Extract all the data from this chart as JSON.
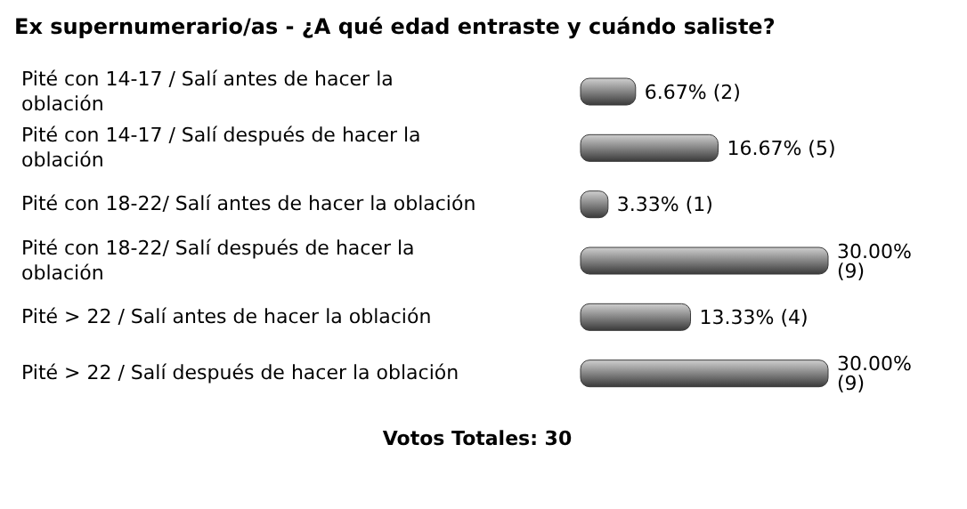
{
  "chart_data": {
    "type": "bar",
    "orientation": "horizontal",
    "title": "Ex supernumerario/as - ¿A qué edad entraste y cuándo saliste?",
    "categories": [
      "Pité con 14-17 / Salí antes de hacer la oblación",
      "Pité con 14-17 / Salí después de hacer la oblación",
      "Pité con 18-22/ Salí antes de hacer la oblación",
      "Pité con 18-22/ Salí después de hacer la oblación",
      "Pité > 22 / Salí antes de hacer la oblación",
      "Pité > 22 / Salí después de hacer la oblación"
    ],
    "values": [
      6.67,
      16.67,
      3.33,
      30.0,
      13.33,
      30.0
    ],
    "value_labels": [
      "6.67% (2)",
      "16.67% (5)",
      "3.33% (1)",
      "30.00% (9)",
      "13.33% (4)",
      "30.00% (9)"
    ],
    "color": "#3a3a3a",
    "annotations": [
      "Votos Totales: 30"
    ]
  }
}
